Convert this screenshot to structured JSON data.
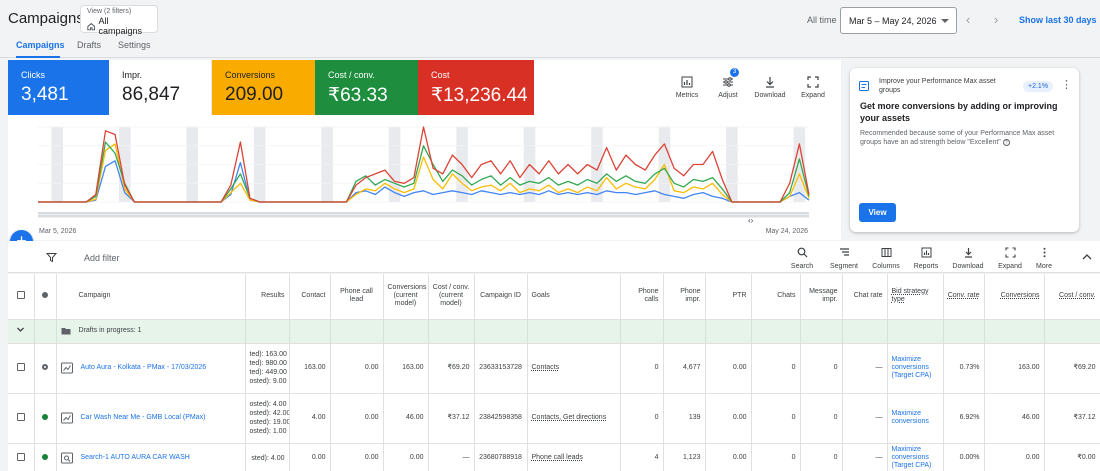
{
  "header": {
    "title": "Campaigns",
    "view_small": "View (2 filters)",
    "view_main": "All campaigns",
    "all_time": "All time",
    "date_range": "Mar 5 – May 24, 2026",
    "show_last": "Show last 30 days"
  },
  "tabs": [
    {
      "label": "Campaigns",
      "active": true
    },
    {
      "label": "Drafts"
    },
    {
      "label": "Settings"
    }
  ],
  "kpis": {
    "clicks": {
      "label": "Clicks",
      "value": "3,481",
      "color": "#1a73e8"
    },
    "impr": {
      "label": "Impr.",
      "value": "86,847"
    },
    "conversions": {
      "label": "Conversions",
      "value": "209.00",
      "color": "#f9ab00"
    },
    "cost_conv": {
      "label": "Cost / conv.",
      "value": "₹63.33",
      "color": "#1e8e3e"
    },
    "cost": {
      "label": "Cost",
      "value": "₹13,236.44",
      "color": "#d93025"
    }
  },
  "chart_tools": {
    "metrics": "Metrics",
    "adjust": "Adjust",
    "adjust_badge": "3",
    "download": "Download",
    "expand": "Expand"
  },
  "chart_data": {
    "type": "line",
    "x_start_label": "Mar 5, 2026",
    "x_end_label": "May 24, 2026",
    "n_points": 81,
    "series": [
      {
        "key": "clicks",
        "color": "#4285f4",
        "values": [
          0,
          0,
          0,
          0,
          0,
          0,
          2,
          38,
          44,
          10,
          0,
          0,
          0,
          0,
          0,
          0,
          0,
          0,
          0,
          0,
          8,
          42,
          2,
          0,
          0,
          0,
          0,
          0,
          0,
          0,
          0,
          0,
          0,
          10,
          12,
          8,
          16,
          10,
          6,
          10,
          12,
          8,
          10,
          12,
          10,
          8,
          12,
          10,
          8,
          10,
          8,
          10,
          8,
          12,
          8,
          10,
          8,
          10,
          8,
          12,
          10,
          10,
          8,
          10,
          12,
          8,
          6,
          4,
          8,
          10,
          6,
          4,
          0,
          0,
          0,
          0,
          0,
          0,
          6,
          10,
          2
        ]
      },
      {
        "key": "conversions",
        "color": "#fbbc04",
        "values": [
          0,
          0,
          0,
          0,
          0,
          0,
          3,
          55,
          62,
          14,
          0,
          0,
          0,
          0,
          0,
          0,
          0,
          0,
          0,
          0,
          10,
          20,
          2,
          0,
          0,
          0,
          0,
          0,
          0,
          0,
          0,
          0,
          0,
          8,
          14,
          12,
          20,
          14,
          10,
          14,
          48,
          24,
          14,
          30,
          20,
          12,
          16,
          18,
          12,
          20,
          10,
          14,
          12,
          18,
          10,
          14,
          10,
          16,
          12,
          26,
          14,
          20,
          16,
          14,
          24,
          40,
          12,
          10,
          16,
          14,
          20,
          8,
          0,
          0,
          0,
          0,
          0,
          0,
          6,
          30,
          4
        ]
      },
      {
        "key": "cost_conv",
        "color": "#34a853",
        "values": [
          0,
          0,
          0,
          0,
          0,
          0,
          6,
          64,
          52,
          20,
          0,
          0,
          0,
          0,
          0,
          0,
          0,
          0,
          0,
          0,
          14,
          30,
          4,
          0,
          0,
          0,
          0,
          0,
          0,
          0,
          0,
          0,
          0,
          22,
          28,
          18,
          24,
          20,
          16,
          20,
          60,
          40,
          22,
          34,
          28,
          18,
          24,
          28,
          18,
          26,
          18,
          22,
          20,
          26,
          18,
          22,
          18,
          24,
          20,
          30,
          22,
          28,
          22,
          20,
          30,
          36,
          20,
          16,
          24,
          22,
          26,
          14,
          0,
          0,
          0,
          0,
          0,
          0,
          10,
          46,
          6
        ]
      },
      {
        "key": "cost",
        "color": "#db4437",
        "values": [
          0,
          0,
          0,
          0,
          0,
          0,
          8,
          76,
          72,
          18,
          0,
          0,
          0,
          0,
          0,
          0,
          0,
          0,
          0,
          0,
          18,
          64,
          4,
          0,
          0,
          0,
          0,
          0,
          0,
          0,
          0,
          0,
          0,
          18,
          26,
          30,
          34,
          22,
          20,
          26,
          80,
          36,
          30,
          50,
          40,
          26,
          40,
          44,
          30,
          44,
          26,
          40,
          30,
          44,
          30,
          40,
          30,
          40,
          34,
          58,
          34,
          50,
          40,
          34,
          50,
          62,
          36,
          28,
          40,
          40,
          54,
          24,
          0,
          0,
          0,
          0,
          0,
          0,
          20,
          62,
          8
        ]
      }
    ],
    "ylim": [
      0,
      80
    ]
  },
  "recommendation": {
    "header": "Improve your Performance Max asset groups",
    "pill": "+2.1%",
    "title": "Get more conversions by adding or improving your assets",
    "body": "Recommended because some of your Performance Max asset groups have an ad strength below \"Excellent\"",
    "view": "View"
  },
  "toolbar": {
    "add_filter": "Add filter",
    "search": "Search",
    "segment": "Segment",
    "columns": "Columns",
    "reports": "Reports",
    "download": "Download",
    "expand": "Expand",
    "more": "More"
  },
  "table": {
    "headers": {
      "campaign": "Campaign",
      "results": "Results",
      "contact": "Contact",
      "phone_call_lead": "Phone call lead",
      "conversions_current": "Conversions (current model)",
      "cost_conv_current": "Cost / conv. (current model)",
      "campaign_id": "Campaign ID",
      "goals": "Goals",
      "phone_calls": "Phone calls",
      "phone_impr": "Phone impr.",
      "ptr": "PTR",
      "chats": "Chats",
      "message_impr": "Message impr.",
      "chat_rate": "Chat rate",
      "bid_strategy": "Bid strategy type",
      "conv_rate": "Conv. rate",
      "conversions": "Conversions",
      "cost_conv": "Cost / conv."
    },
    "draft_row": {
      "label": "Drafts in progress: 1"
    },
    "rows": [
      {
        "campaign": "Auto Aura - Kolkata - PMax - 17/03/2026",
        "results": [
          "ted): 163.00",
          "ted): 980.00",
          "ted): 449.00",
          "osted): 9.00"
        ],
        "contact": "163.00",
        "phone_call_lead": "0.00",
        "conversions_current": "163.00",
        "cost_conv_current": "₹69.20",
        "campaign_id": "23633153728",
        "goals": "Contacts",
        "phone_calls": "0",
        "phone_impr": "4,677",
        "ptr": "0.00",
        "chats": "0",
        "message_impr": "0",
        "chat_rate": "—",
        "bid_strategy": "Maximize conversions (Target CPA)",
        "conv_rate": "0.73%",
        "conversions": "163.00",
        "cost_conv": "₹69.20"
      },
      {
        "campaign": "Car Wash Near Me - GMB Local (PMax)",
        "results": [
          "osted): 4.00",
          "osted): 42.00",
          "osted): 19.00",
          "osted): 1.00"
        ],
        "contact": "4.00",
        "phone_call_lead": "0.00",
        "conversions_current": "46.00",
        "cost_conv_current": "₹37.12",
        "campaign_id": "23842598358",
        "goals": "Contacts, Get directions",
        "phone_calls": "0",
        "phone_impr": "139",
        "ptr": "0.00",
        "chats": "0",
        "message_impr": "0",
        "chat_rate": "—",
        "bid_strategy": "Maximize conversions",
        "conv_rate": "6.92%",
        "conversions": "46.00",
        "cost_conv": "₹37.12"
      },
      {
        "campaign": "Search-1 AUTO AURA CAR WASH",
        "results": [
          "sted): 4.00"
        ],
        "contact": "0.00",
        "phone_call_lead": "0.00",
        "conversions_current": "0.00",
        "cost_conv_current": "—",
        "campaign_id": "23680788918",
        "goals": "Phone call leads",
        "phone_calls": "4",
        "phone_impr": "1,123",
        "ptr": "0.00",
        "chats": "0",
        "message_impr": "0",
        "chat_rate": "—",
        "bid_strategy": "Maximize conversions (Target CPA)",
        "conv_rate": "0.00%",
        "conversions": "0.00",
        "cost_conv": "₹0.00"
      }
    ]
  }
}
